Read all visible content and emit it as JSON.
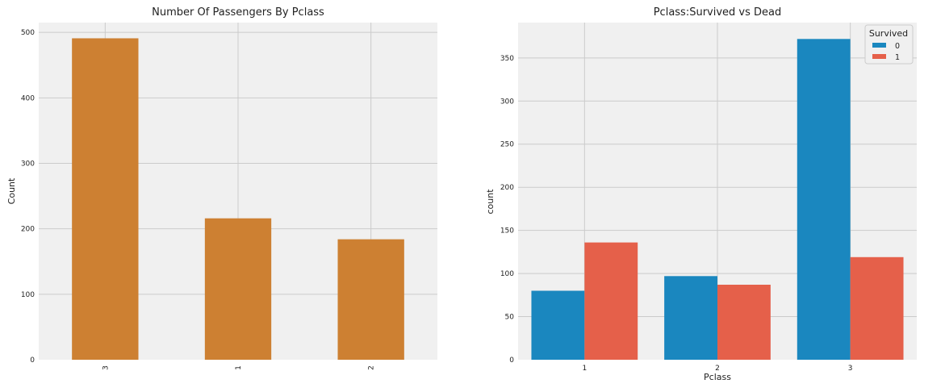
{
  "chart_data": [
    {
      "type": "bar",
      "title": "Number Of Passengers By Pclass",
      "xlabel": "",
      "ylabel": "Count",
      "categories": [
        "3",
        "1",
        "2"
      ],
      "values": [
        491,
        216,
        184
      ],
      "ylim": [
        0,
        515
      ],
      "yticks": [
        0,
        100,
        200,
        300,
        400,
        500
      ],
      "grid": true,
      "colors": {
        "bar": "#cd8032",
        "background": "#f0f0f0",
        "grid": "#cbcbcb"
      }
    },
    {
      "type": "bar",
      "title": "Pclass:Survived vs Dead",
      "xlabel": "Pclass",
      "ylabel": "count",
      "categories": [
        "1",
        "2",
        "3"
      ],
      "series": [
        {
          "name": "0",
          "values": [
            80,
            97,
            372
          ],
          "color": "#1a87bf"
        },
        {
          "name": "1",
          "values": [
            136,
            87,
            119
          ],
          "color": "#e5604a"
        }
      ],
      "ylim": [
        0,
        391
      ],
      "yticks": [
        0,
        50,
        100,
        150,
        200,
        250,
        300,
        350
      ],
      "grid": true,
      "legend": {
        "title": "Survived",
        "placement": "top-right"
      },
      "colors": {
        "background": "#f0f0f0",
        "grid": "#cbcbcb"
      }
    }
  ]
}
